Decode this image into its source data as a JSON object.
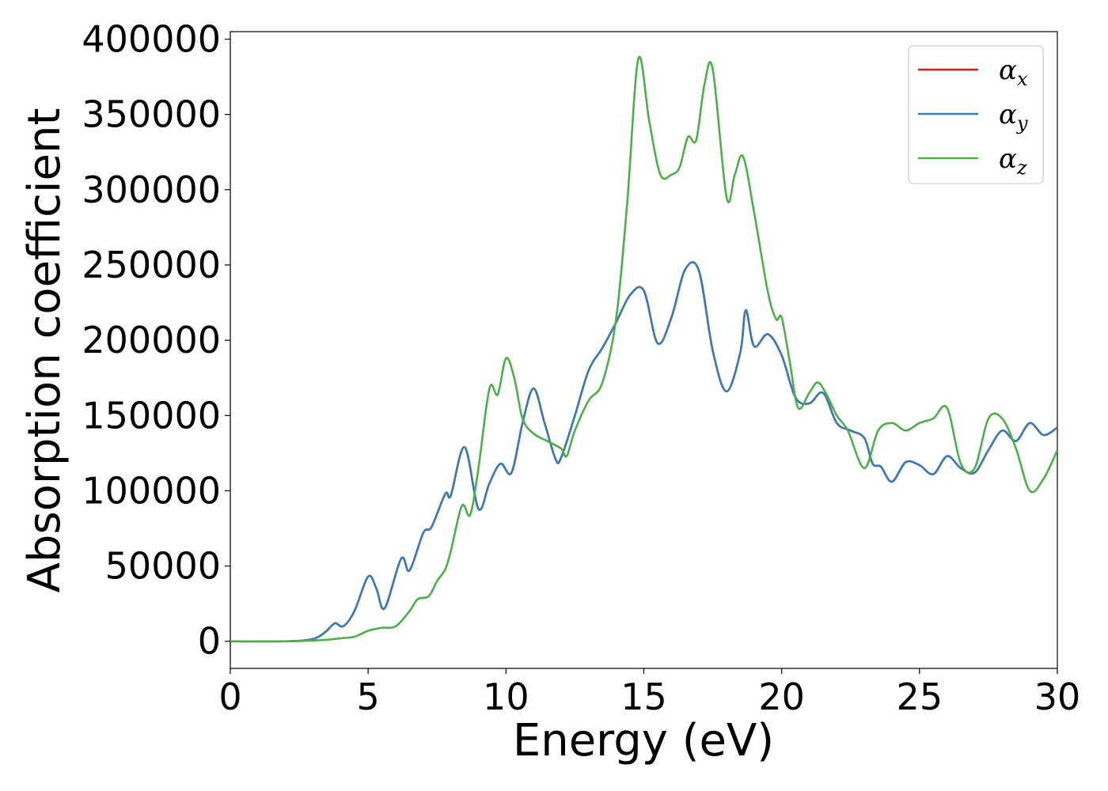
{
  "chart_data": {
    "type": "line",
    "title": "",
    "xlabel": "Energy (eV)",
    "ylabel": "Absorption coefficient",
    "xlim": [
      0,
      30
    ],
    "ylim": [
      -18000,
      405000
    ],
    "xticks": [
      0,
      5,
      10,
      15,
      20,
      25,
      30
    ],
    "xtick_labels": [
      "0",
      "5",
      "10",
      "15",
      "20",
      "25",
      "30"
    ],
    "yticks": [
      0,
      50000,
      100000,
      150000,
      200000,
      250000,
      300000,
      350000,
      400000
    ],
    "ytick_labels": [
      "0",
      "50000",
      "100000",
      "150000",
      "200000",
      "250000",
      "300000",
      "350000",
      "400000"
    ],
    "grid": false,
    "legend_position": "top-right",
    "series": [
      {
        "name": "α_x",
        "symbol": "α",
        "subscript": "x",
        "color": "#e41a1c",
        "x": [
          0,
          2,
          2.8,
          3.2,
          3.5,
          3.8,
          4.1,
          4.5,
          5.0,
          5.3,
          5.6,
          6.2,
          6.5,
          7.0,
          7.3,
          7.8,
          8.0,
          8.5,
          9.0,
          9.4,
          9.8,
          10.2,
          10.6,
          11.0,
          11.4,
          11.8,
          12.0,
          12.5,
          13.0,
          13.5,
          14.0,
          14.5,
          15.0,
          15.5,
          16.0,
          16.5,
          17.0,
          17.5,
          18.0,
          18.5,
          18.7,
          19.0,
          19.5,
          20.0,
          20.5,
          21.0,
          21.5,
          22.0,
          22.5,
          23.0,
          23.3,
          23.6,
          24.0,
          24.5,
          25.0,
          25.5,
          26.0,
          26.5,
          27.0,
          27.5,
          28.0,
          28.5,
          29.0,
          29.5,
          30.0
        ],
        "y": [
          0,
          0,
          800,
          3000,
          7000,
          12000,
          10000,
          20000,
          43000,
          35000,
          22000,
          55000,
          47000,
          72000,
          76000,
          98000,
          97000,
          129000,
          88000,
          105000,
          118000,
          112000,
          145000,
          168000,
          145000,
          121000,
          122000,
          150000,
          180000,
          195000,
          212000,
          230000,
          233000,
          198000,
          215000,
          247000,
          246000,
          193000,
          166000,
          192000,
          220000,
          196000,
          204000,
          190000,
          162000,
          158000,
          165000,
          145000,
          140000,
          135000,
          118000,
          116000,
          106000,
          119000,
          117000,
          111000,
          123000,
          115000,
          112000,
          127000,
          140000,
          133000,
          145000,
          137000,
          142000
        ]
      },
      {
        "name": "α_y",
        "symbol": "α",
        "subscript": "y",
        "color": "#377eb8",
        "x": [
          0,
          2,
          2.8,
          3.2,
          3.5,
          3.8,
          4.1,
          4.5,
          5.0,
          5.3,
          5.6,
          6.2,
          6.5,
          7.0,
          7.3,
          7.8,
          8.0,
          8.5,
          9.0,
          9.4,
          9.8,
          10.2,
          10.6,
          11.0,
          11.4,
          11.8,
          12.0,
          12.5,
          13.0,
          13.5,
          14.0,
          14.5,
          15.0,
          15.5,
          16.0,
          16.5,
          17.0,
          17.5,
          18.0,
          18.5,
          18.7,
          19.0,
          19.5,
          20.0,
          20.5,
          21.0,
          21.5,
          22.0,
          22.5,
          23.0,
          23.3,
          23.6,
          24.0,
          24.5,
          25.0,
          25.5,
          26.0,
          26.5,
          27.0,
          27.5,
          28.0,
          28.5,
          29.0,
          29.5,
          30.0
        ],
        "y": [
          0,
          0,
          800,
          3000,
          7000,
          12000,
          10000,
          20000,
          43000,
          35000,
          22000,
          55000,
          47000,
          72000,
          76000,
          98000,
          97000,
          129000,
          88000,
          105000,
          118000,
          112000,
          145000,
          168000,
          145000,
          121000,
          122000,
          150000,
          180000,
          195000,
          212000,
          230000,
          233000,
          198000,
          215000,
          247000,
          246000,
          193000,
          166000,
          192000,
          220000,
          196000,
          204000,
          190000,
          162000,
          158000,
          165000,
          145000,
          140000,
          135000,
          118000,
          116000,
          106000,
          119000,
          117000,
          111000,
          123000,
          115000,
          112000,
          127000,
          140000,
          133000,
          145000,
          137000,
          142000
        ]
      },
      {
        "name": "α_z",
        "symbol": "α",
        "subscript": "z",
        "color": "#4daf4a",
        "x": [
          0,
          2,
          3.0,
          3.5,
          4.0,
          4.5,
          5.0,
          5.5,
          6.0,
          6.5,
          6.8,
          7.2,
          7.5,
          7.8,
          8.0,
          8.4,
          8.7,
          9.0,
          9.4,
          9.7,
          10.0,
          10.3,
          10.6,
          11.0,
          11.5,
          12.0,
          12.2,
          12.5,
          13.0,
          13.5,
          14.0,
          14.4,
          14.8,
          15.2,
          15.6,
          16.0,
          16.3,
          16.6,
          16.9,
          17.2,
          17.5,
          18.0,
          18.3,
          18.6,
          19.0,
          19.5,
          19.8,
          20.0,
          20.3,
          20.6,
          21.0,
          21.3,
          21.6,
          22.0,
          22.4,
          23.0,
          23.5,
          24.0,
          24.5,
          25.0,
          25.5,
          26.0,
          26.5,
          27.0,
          27.5,
          28.0,
          28.5,
          29.0,
          29.5,
          30.0
        ],
        "y": [
          0,
          0,
          500,
          1000,
          2000,
          3000,
          7000,
          9000,
          10000,
          20000,
          28000,
          30000,
          40000,
          48000,
          60000,
          90000,
          84000,
          115000,
          168000,
          164000,
          188000,
          175000,
          148000,
          138000,
          133000,
          128000,
          123000,
          140000,
          160000,
          172000,
          215000,
          292000,
          387000,
          345000,
          310000,
          310000,
          315000,
          335000,
          333000,
          370000,
          380000,
          295000,
          310000,
          322000,
          285000,
          232000,
          214000,
          215000,
          185000,
          155000,
          165000,
          172000,
          165000,
          150000,
          140000,
          115000,
          140000,
          145000,
          140000,
          145000,
          148000,
          155000,
          118000,
          115000,
          148000,
          148000,
          128000,
          100000,
          108000,
          127000
        ]
      }
    ]
  }
}
